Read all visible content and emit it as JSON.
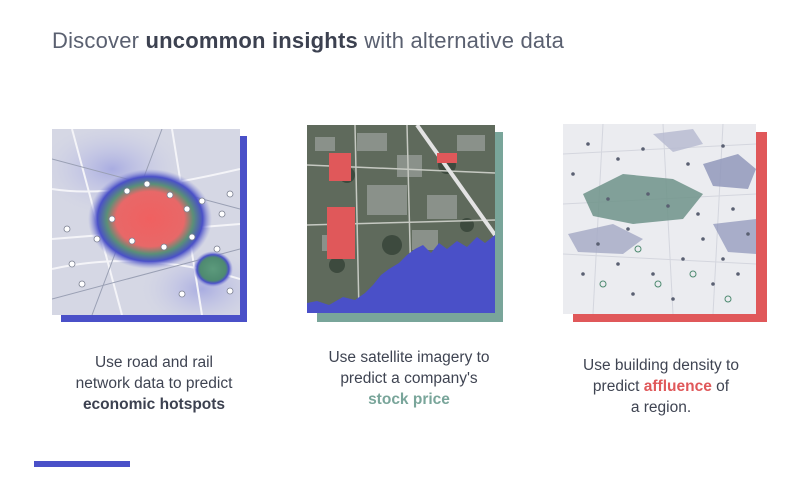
{
  "title": {
    "prefix": "Discover ",
    "highlight": "uncommon insights",
    "suffix": " with alternative data"
  },
  "colors": {
    "blue": "#4a50c8",
    "teal": "#79a59a",
    "red": "#e0585a",
    "text": "#3f4452"
  },
  "cards": [
    {
      "image": "road-rail-heatmap",
      "caption": {
        "line1": "Use road and  rail",
        "line2": "network data to predict",
        "highlight": "economic hotspots",
        "after": "",
        "line4": ""
      }
    },
    {
      "image": "satellite-imagery",
      "caption": {
        "line1": "Use satellite imagery to",
        "line2": "predict a company's",
        "highlight": "stock price",
        "after": "",
        "line4": ""
      }
    },
    {
      "image": "building-density-map",
      "caption": {
        "line1": "Use building density to",
        "line2": "predict ",
        "highlight": "affluence",
        "after": " of",
        "line4": "a region."
      }
    }
  ]
}
